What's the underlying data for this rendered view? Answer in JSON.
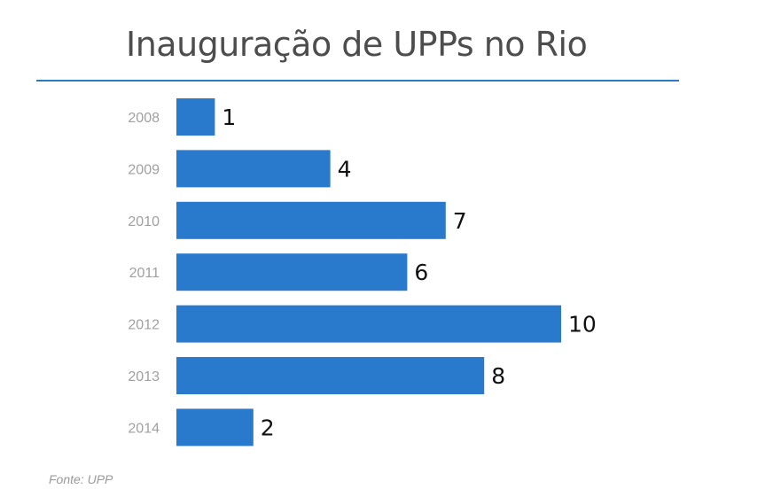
{
  "chart_data": {
    "type": "bar",
    "orientation": "horizontal",
    "title": "Inauguração de UPPs no Rio",
    "categories": [
      "2008",
      "2009",
      "2010",
      "2011",
      "2012",
      "2013",
      "2014"
    ],
    "values": [
      1,
      4,
      7,
      6,
      10,
      8,
      2
    ],
    "xlim": [
      0,
      10
    ],
    "grid": false,
    "legend": "none",
    "bar_color": "#2979cc",
    "source": "Fonte: UPP"
  }
}
